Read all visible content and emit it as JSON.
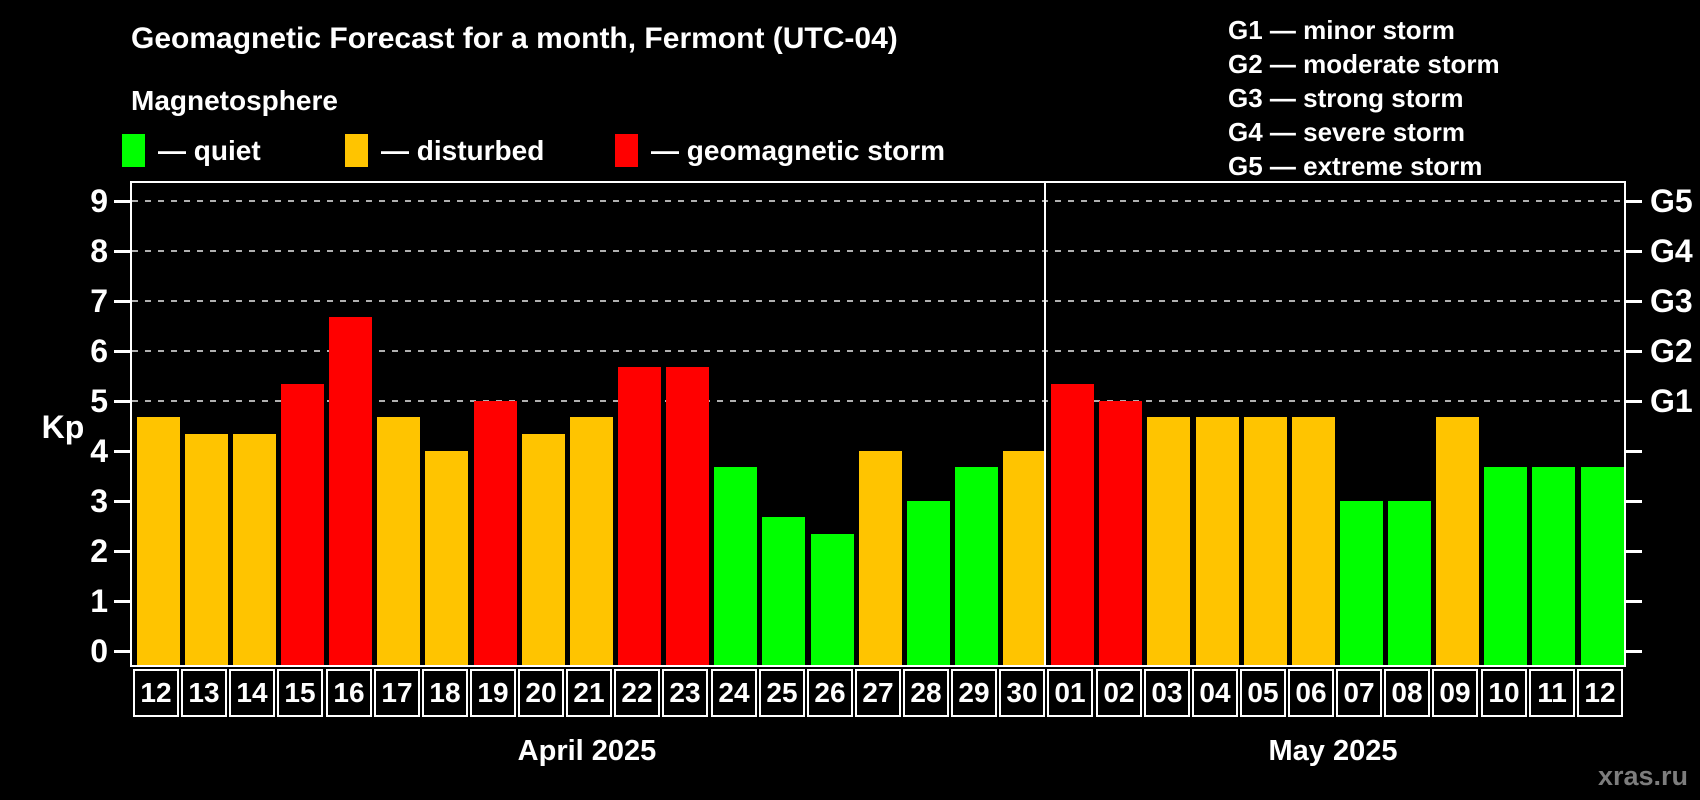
{
  "header": {
    "title": "Geomagnetic Forecast for a month, Fermont (UTC-04)",
    "subtitle": "Magnetosphere"
  },
  "legend": {
    "items": [
      {
        "id": "quiet",
        "label": "— quiet"
      },
      {
        "id": "disturbed",
        "label": "— disturbed"
      },
      {
        "id": "storm",
        "label": "— geomagnetic storm"
      }
    ]
  },
  "g_scale_legend": {
    "lines": [
      "G1 — minor storm",
      "G2 — moderate storm",
      "G3 — strong storm",
      "G4 — severe storm",
      "G5 — extreme storm"
    ]
  },
  "axes": {
    "y_left_title": "Kp",
    "y_left_ticks": [
      "0",
      "1",
      "2",
      "3",
      "4",
      "5",
      "6",
      "7",
      "8",
      "9"
    ],
    "y_right_labels": [
      {
        "kp": 5,
        "label": "G1"
      },
      {
        "kp": 6,
        "label": "G2"
      },
      {
        "kp": 7,
        "label": "G3"
      },
      {
        "kp": 8,
        "label": "G4"
      },
      {
        "kp": 9,
        "label": "G5"
      }
    ],
    "gridline_kps": [
      5,
      6,
      7,
      8,
      9
    ]
  },
  "colors": {
    "quiet": "#00ff00",
    "disturbed": "#ffc400",
    "storm": "#ff0000",
    "background": "#000000",
    "grid": "#b0b0b0",
    "frame": "#ffffff",
    "watermark": "#7d7d7d"
  },
  "months": [
    {
      "label": "April 2025"
    },
    {
      "label": "May 2025"
    }
  ],
  "watermark": "xras.ru",
  "chart_data": {
    "type": "bar",
    "title": "Geomagnetic Forecast for a month, Fermont (UTC-04)",
    "xlabel": "",
    "ylabel": "Kp",
    "ylim": [
      0,
      9.4
    ],
    "grid": "dashed horizontal at Kp 5-9 (G1-G5)",
    "days": [
      {
        "month": "April 2025",
        "day": "12",
        "kp": 4.67,
        "level": "disturbed"
      },
      {
        "month": "April 2025",
        "day": "13",
        "kp": 4.33,
        "level": "disturbed"
      },
      {
        "month": "April 2025",
        "day": "14",
        "kp": 4.33,
        "level": "disturbed"
      },
      {
        "month": "April 2025",
        "day": "15",
        "kp": 5.33,
        "level": "storm"
      },
      {
        "month": "April 2025",
        "day": "16",
        "kp": 6.67,
        "level": "storm"
      },
      {
        "month": "April 2025",
        "day": "17",
        "kp": 4.67,
        "level": "disturbed"
      },
      {
        "month": "April 2025",
        "day": "18",
        "kp": 4.0,
        "level": "disturbed"
      },
      {
        "month": "April 2025",
        "day": "19",
        "kp": 5.0,
        "level": "storm"
      },
      {
        "month": "April 2025",
        "day": "20",
        "kp": 4.33,
        "level": "disturbed"
      },
      {
        "month": "April 2025",
        "day": "21",
        "kp": 4.67,
        "level": "disturbed"
      },
      {
        "month": "April 2025",
        "day": "22",
        "kp": 5.67,
        "level": "storm"
      },
      {
        "month": "April 2025",
        "day": "23",
        "kp": 5.67,
        "level": "storm"
      },
      {
        "month": "April 2025",
        "day": "24",
        "kp": 3.67,
        "level": "quiet"
      },
      {
        "month": "April 2025",
        "day": "25",
        "kp": 2.67,
        "level": "quiet"
      },
      {
        "month": "April 2025",
        "day": "26",
        "kp": 2.33,
        "level": "quiet"
      },
      {
        "month": "April 2025",
        "day": "27",
        "kp": 4.0,
        "level": "disturbed"
      },
      {
        "month": "April 2025",
        "day": "28",
        "kp": 3.0,
        "level": "quiet"
      },
      {
        "month": "April 2025",
        "day": "29",
        "kp": 3.67,
        "level": "quiet"
      },
      {
        "month": "April 2025",
        "day": "30",
        "kp": 4.0,
        "level": "disturbed"
      },
      {
        "month": "May 2025",
        "day": "01",
        "kp": 5.33,
        "level": "storm"
      },
      {
        "month": "May 2025",
        "day": "02",
        "kp": 5.0,
        "level": "storm"
      },
      {
        "month": "May 2025",
        "day": "03",
        "kp": 4.67,
        "level": "disturbed"
      },
      {
        "month": "May 2025",
        "day": "04",
        "kp": 4.67,
        "level": "disturbed"
      },
      {
        "month": "May 2025",
        "day": "05",
        "kp": 4.67,
        "level": "disturbed"
      },
      {
        "month": "May 2025",
        "day": "06",
        "kp": 4.67,
        "level": "disturbed"
      },
      {
        "month": "May 2025",
        "day": "07",
        "kp": 3.0,
        "level": "quiet"
      },
      {
        "month": "May 2025",
        "day": "08",
        "kp": 3.0,
        "level": "quiet"
      },
      {
        "month": "May 2025",
        "day": "09",
        "kp": 4.67,
        "level": "disturbed"
      },
      {
        "month": "May 2025",
        "day": "10",
        "kp": 3.67,
        "level": "quiet"
      },
      {
        "month": "May 2025",
        "day": "11",
        "kp": 3.67,
        "level": "quiet"
      },
      {
        "month": "May 2025",
        "day": "12",
        "kp": 3.67,
        "level": "quiet"
      }
    ]
  }
}
